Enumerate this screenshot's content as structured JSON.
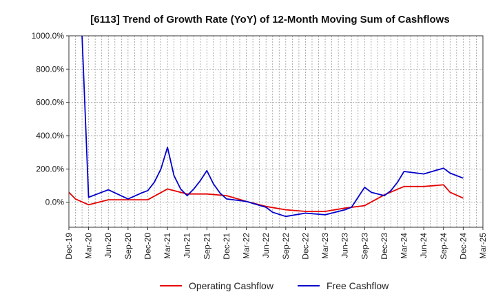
{
  "chart_data": {
    "type": "line",
    "title": "[6113]  Trend of Growth Rate (YoY) of 12-Month Moving Sum of Cashflows",
    "xlabel": "",
    "ylabel": "",
    "ylim": [
      -150,
      1000
    ],
    "y_ticks": [
      0,
      200,
      400,
      600,
      800,
      1000
    ],
    "y_tick_labels": [
      "0.0%",
      "200.0%",
      "400.0%",
      "600.0%",
      "800.0%",
      "1000.0%"
    ],
    "x_tick_labels": [
      "Dec-19",
      "Mar-20",
      "Jun-20",
      "Sep-20",
      "Dec-20",
      "Mar-21",
      "Jun-21",
      "Sep-21",
      "Dec-21",
      "Mar-22",
      "Jun-22",
      "Sep-22",
      "Dec-22",
      "Mar-23",
      "Jun-23",
      "Sep-23",
      "Dec-23",
      "Mar-24",
      "Jun-24",
      "Sep-24",
      "Dec-24",
      "Mar-25"
    ],
    "x": [
      "Dec-19",
      "Jan-20",
      "Feb-20",
      "Mar-20",
      "Apr-20",
      "May-20",
      "Jun-20",
      "Jul-20",
      "Aug-20",
      "Sep-20",
      "Oct-20",
      "Nov-20",
      "Dec-20",
      "Jan-21",
      "Feb-21",
      "Mar-21",
      "Apr-21",
      "May-21",
      "Jun-21",
      "Jul-21",
      "Aug-21",
      "Sep-21",
      "Oct-21",
      "Nov-21",
      "Dec-21",
      "Jan-22",
      "Feb-22",
      "Mar-22",
      "Apr-22",
      "May-22",
      "Jun-22",
      "Jul-22",
      "Aug-22",
      "Sep-22",
      "Oct-22",
      "Nov-22",
      "Dec-22",
      "Jan-23",
      "Feb-23",
      "Mar-23",
      "Apr-23",
      "May-23",
      "Jun-23",
      "Jul-23",
      "Aug-23",
      "Sep-23",
      "Oct-23",
      "Nov-23",
      "Dec-23",
      "Jan-24",
      "Feb-24",
      "Mar-24",
      "Apr-24",
      "May-24",
      "Jun-24",
      "Jul-24",
      "Aug-24",
      "Sep-24",
      "Oct-24",
      "Nov-24",
      "Dec-24",
      "Jan-25",
      "Feb-25",
      "Mar-25"
    ],
    "grid": true,
    "legend": "bottom",
    "series": [
      {
        "name": "Operating Cashflow",
        "color": "#e60000",
        "values": [
          60,
          20,
          null,
          -15,
          null,
          null,
          15,
          null,
          null,
          15,
          null,
          null,
          15,
          null,
          null,
          80,
          null,
          null,
          50,
          null,
          null,
          50,
          null,
          null,
          40,
          null,
          null,
          5,
          null,
          null,
          -25,
          null,
          null,
          -45,
          null,
          null,
          -55,
          null,
          null,
          -55,
          null,
          null,
          -35,
          null,
          null,
          -20,
          null,
          null,
          45,
          null,
          null,
          95,
          null,
          null,
          95,
          null,
          null,
          105,
          60,
          null,
          25,
          null,
          null,
          null
        ]
      },
      {
        "name": "Free Cashflow",
        "color": "#0000cc",
        "values": [
          null,
          null,
          1000,
          30,
          null,
          60,
          75,
          null,
          null,
          20,
          null,
          55,
          70,
          120,
          200,
          330,
          160,
          80,
          40,
          80,
          130,
          190,
          110,
          55,
          20,
          null,
          null,
          5,
          null,
          null,
          -30,
          -60,
          null,
          -85,
          null,
          null,
          -65,
          null,
          null,
          -75,
          null,
          null,
          -45,
          -30,
          null,
          90,
          60,
          null,
          40,
          70,
          120,
          185,
          null,
          null,
          170,
          null,
          null,
          205,
          175,
          null,
          145,
          null,
          null,
          null
        ]
      }
    ]
  }
}
